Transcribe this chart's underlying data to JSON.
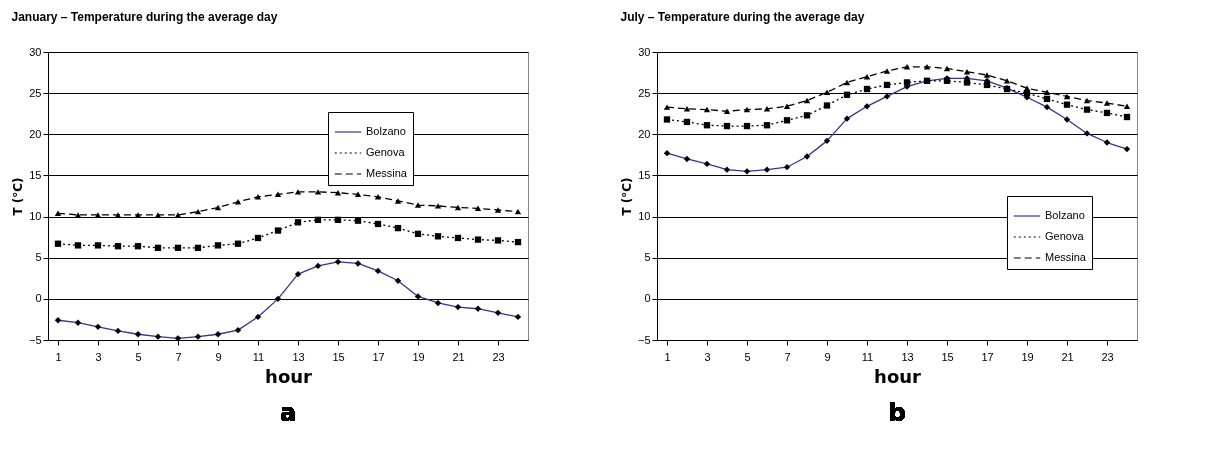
{
  "chart_data": [
    {
      "type": "line",
      "title": "January – Temperature during the average day",
      "xlabel": "hour",
      "ylabel": "T (°C)",
      "annotations": [
        "a"
      ],
      "x": [
        1,
        2,
        3,
        4,
        5,
        6,
        7,
        8,
        9,
        10,
        11,
        12,
        13,
        14,
        15,
        16,
        17,
        18,
        19,
        20,
        21,
        22,
        23,
        24
      ],
      "xlim": [
        0.5,
        24.5
      ],
      "xticks": [
        1,
        3,
        5,
        7,
        9,
        11,
        13,
        15,
        17,
        19,
        21,
        23
      ],
      "ylim": [
        -5,
        30
      ],
      "yticks": [
        -5,
        0,
        5,
        10,
        15,
        20,
        25,
        30
      ],
      "grid": "y",
      "legend": "top right",
      "series": [
        {
          "name": "Bolzano",
          "color": "#333399",
          "marker": "diamond",
          "line_style": "solid",
          "values": [
            -2.6,
            -2.9,
            -3.4,
            -3.9,
            -4.3,
            -4.6,
            -4.8,
            -4.6,
            -4.3,
            -3.8,
            -2.2,
            0,
            3.0,
            4.0,
            4.5,
            4.3,
            3.4,
            2.2,
            0.3,
            -0.5,
            -1.0,
            -1.2,
            -1.7,
            -2.2
          ]
        },
        {
          "name": "Genova",
          "color": "#000000",
          "marker": "square",
          "line_style": "dotted",
          "values": [
            6.7,
            6.5,
            6.5,
            6.4,
            6.4,
            6.2,
            6.2,
            6.2,
            6.5,
            6.7,
            7.4,
            8.3,
            9.3,
            9.6,
            9.6,
            9.5,
            9.1,
            8.6,
            7.9,
            7.6,
            7.4,
            7.2,
            7.1,
            6.9
          ]
        },
        {
          "name": "Messina",
          "color": "#000000",
          "marker": "triangle",
          "line_style": "dashed",
          "values": [
            10.4,
            10.2,
            10.2,
            10.2,
            10.2,
            10.2,
            10.2,
            10.6,
            11.1,
            11.8,
            12.4,
            12.7,
            13.0,
            13.0,
            12.9,
            12.7,
            12.4,
            11.9,
            11.4,
            11.3,
            11.1,
            11.0,
            10.8,
            10.6
          ]
        }
      ]
    },
    {
      "type": "line",
      "title": "July – Temperature during the average day",
      "xlabel": "hour",
      "ylabel": "T (°C)",
      "annotations": [
        "b"
      ],
      "x": [
        1,
        2,
        3,
        4,
        5,
        6,
        7,
        8,
        9,
        10,
        11,
        12,
        13,
        14,
        15,
        16,
        17,
        18,
        19,
        20,
        21,
        22,
        23,
        24
      ],
      "xlim": [
        0.5,
        24.5
      ],
      "xticks": [
        1,
        3,
        5,
        7,
        9,
        11,
        13,
        15,
        17,
        19,
        21,
        23
      ],
      "ylim": [
        -5,
        30
      ],
      "yticks": [
        -5,
        0,
        5,
        10,
        15,
        20,
        25,
        30
      ],
      "grid": "y",
      "legend": "right",
      "series": [
        {
          "name": "Bolzano",
          "color": "#333399",
          "marker": "diamond",
          "line_style": "solid",
          "values": [
            17.7,
            17.0,
            16.4,
            15.7,
            15.5,
            15.7,
            16.0,
            17.3,
            19.2,
            21.9,
            23.4,
            24.6,
            25.8,
            26.5,
            26.8,
            26.8,
            26.5,
            25.6,
            24.5,
            23.3,
            21.8,
            20.1,
            19.0,
            18.2
          ]
        },
        {
          "name": "Genova",
          "color": "#000000",
          "marker": "square",
          "line_style": "dotted",
          "values": [
            21.8,
            21.5,
            21.1,
            21.0,
            21.0,
            21.1,
            21.7,
            22.3,
            23.5,
            24.8,
            25.5,
            26.0,
            26.3,
            26.5,
            26.5,
            26.3,
            26.0,
            25.5,
            25.0,
            24.3,
            23.6,
            23.0,
            22.6,
            22.1
          ]
        },
        {
          "name": "Messina",
          "color": "#000000",
          "marker": "triangle",
          "line_style": "dashed",
          "values": [
            23.3,
            23.1,
            23.0,
            22.8,
            23.0,
            23.1,
            23.4,
            24.1,
            25.1,
            26.3,
            27.0,
            27.7,
            28.2,
            28.2,
            28.0,
            27.6,
            27.2,
            26.5,
            25.6,
            25.1,
            24.6,
            24.1,
            23.8,
            23.4
          ]
        }
      ]
    }
  ]
}
